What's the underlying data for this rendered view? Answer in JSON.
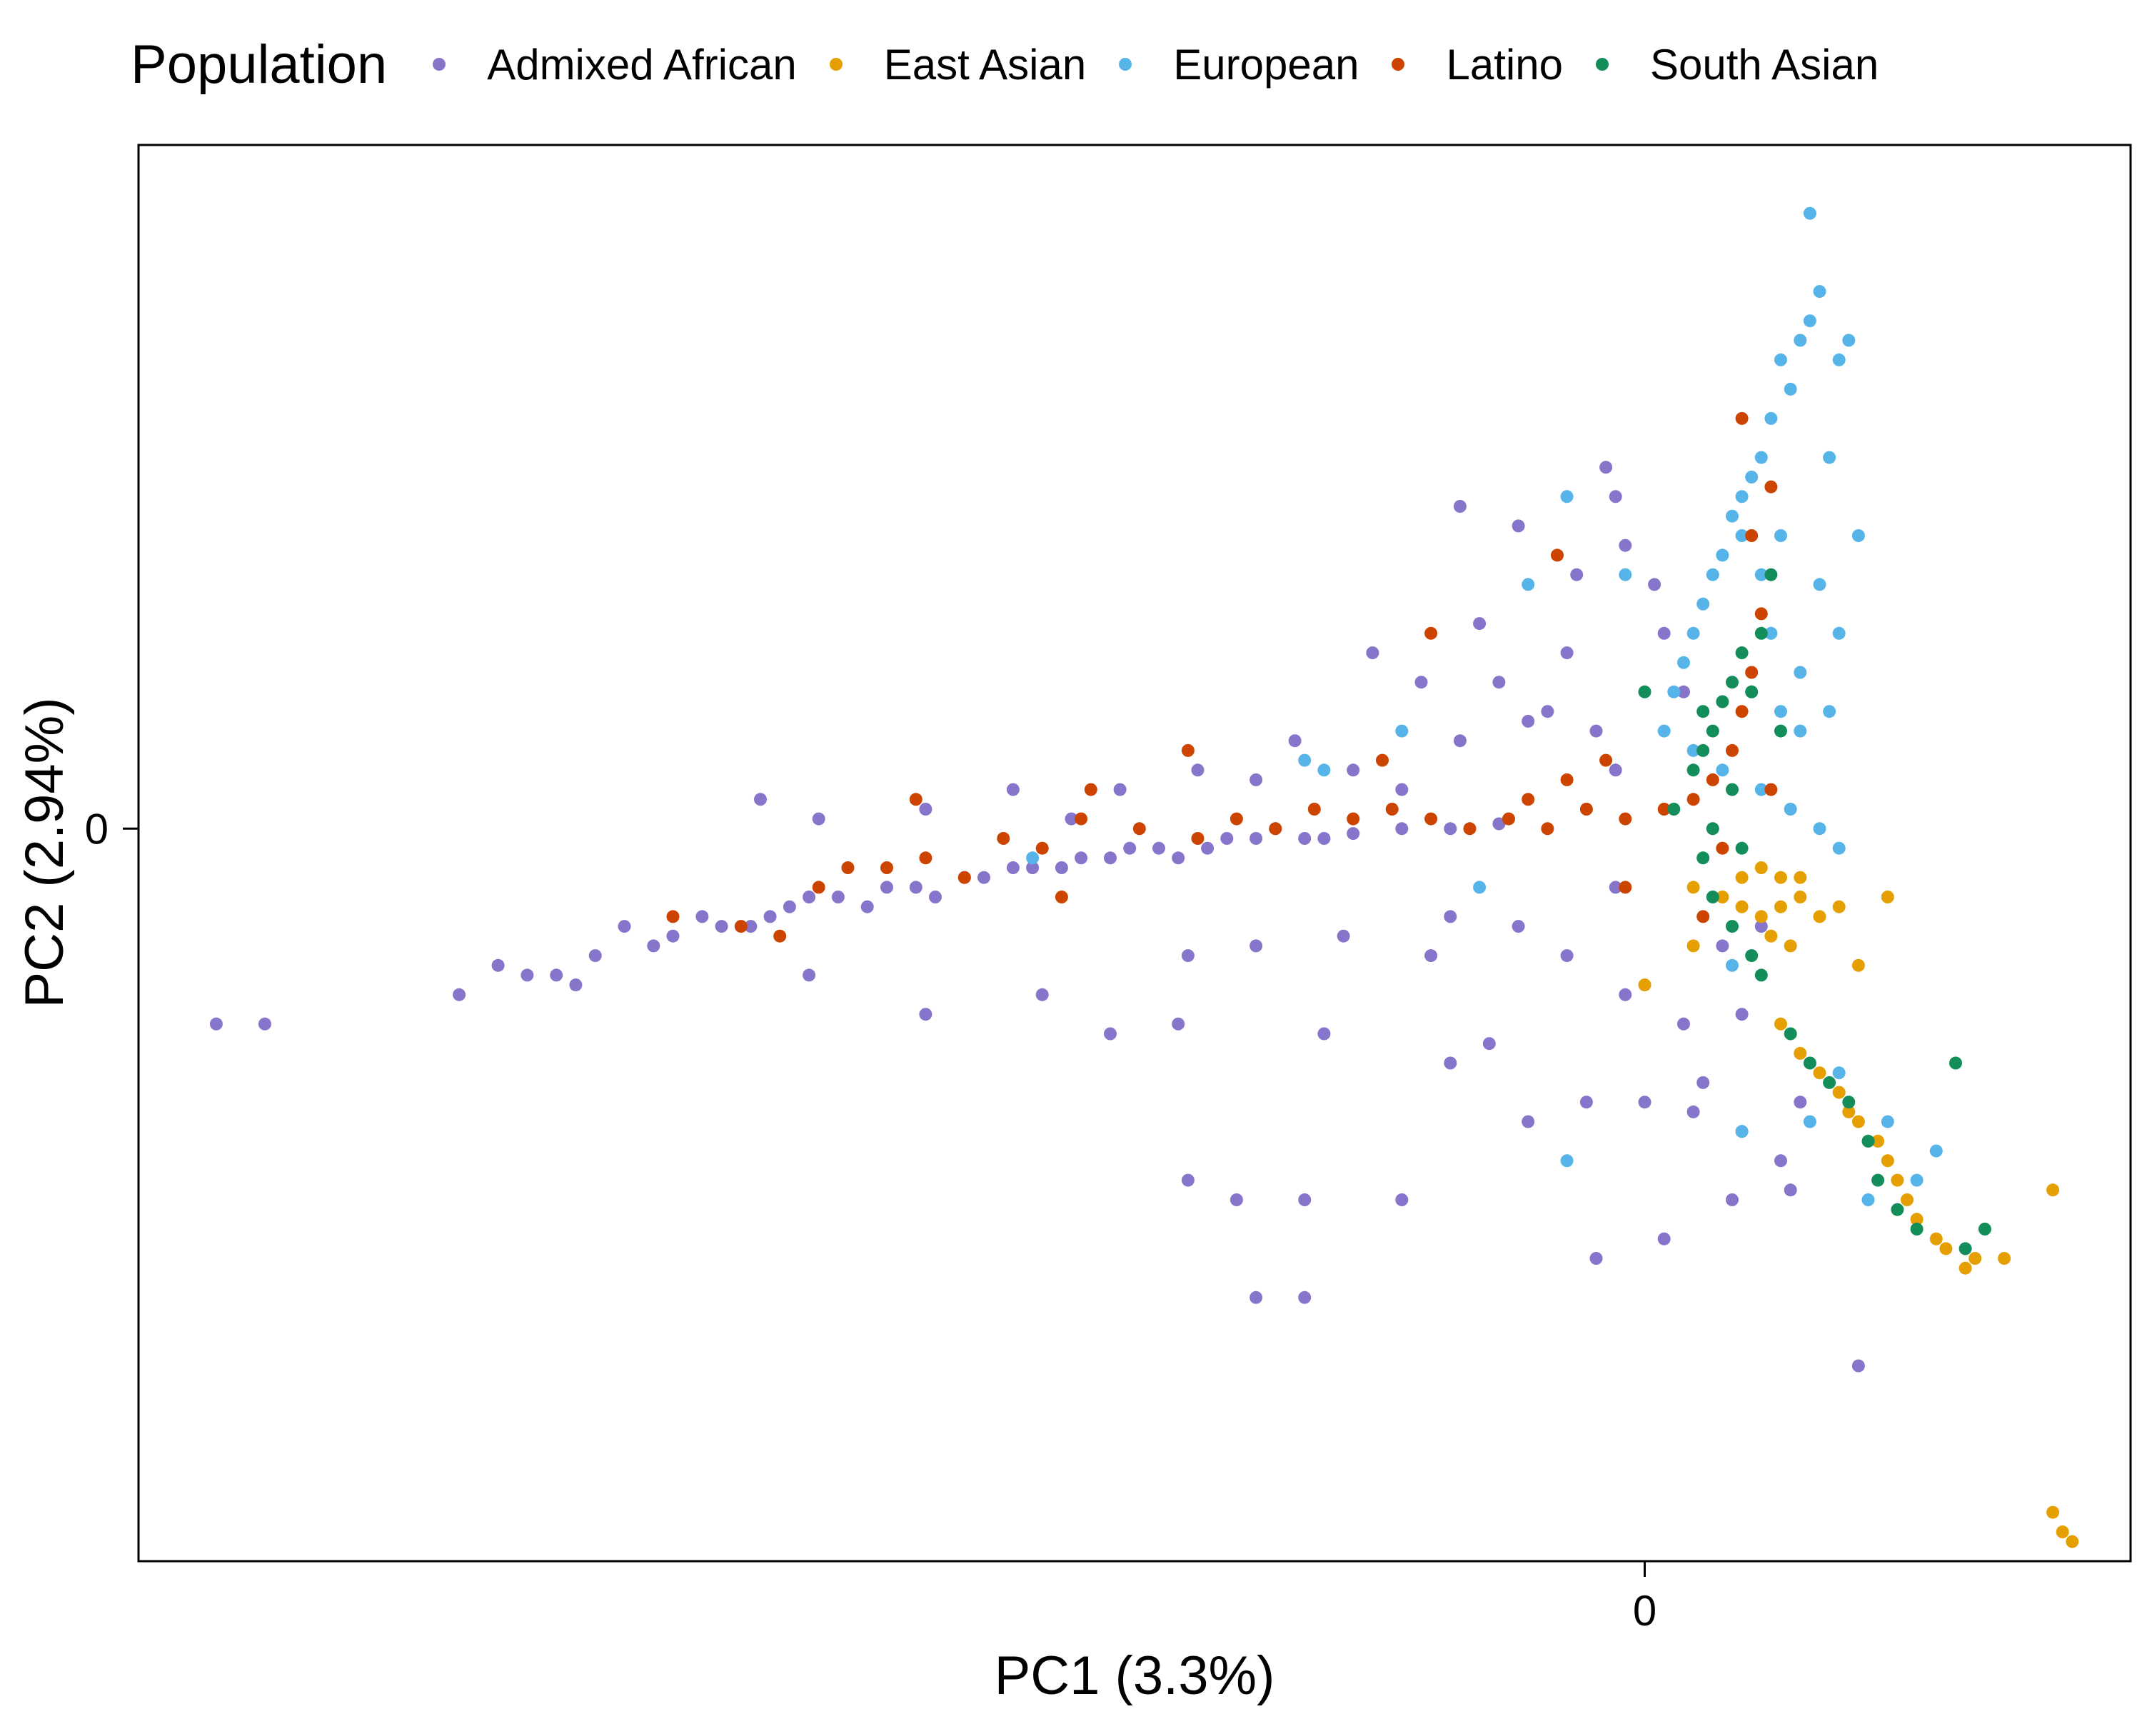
{
  "chart_data": {
    "type": "scatter",
    "title": "",
    "xlabel": "PC1 (3.3%)",
    "ylabel": "PC2 (2.94%)",
    "xlim": [
      -1.55,
      0.5
    ],
    "ylim": [
      -0.75,
      0.7
    ],
    "xticks": [
      0
    ],
    "yticks": [
      0
    ],
    "xtick_labels": [
      "0"
    ],
    "ytick_labels": [
      "0"
    ],
    "grid": false,
    "legend": {
      "title": "Population",
      "position": "top",
      "entries": [
        "Admixed African",
        "East Asian",
        "European",
        "Latino",
        "South Asian"
      ]
    },
    "series": [
      {
        "name": "Admixed African",
        "color": "#8675CB",
        "points": [
          [
            -1.47,
            -0.2
          ],
          [
            -1.42,
            -0.2
          ],
          [
            -1.22,
            -0.17
          ],
          [
            -1.18,
            -0.14
          ],
          [
            -1.15,
            -0.15
          ],
          [
            -1.12,
            -0.15
          ],
          [
            -1.1,
            -0.16
          ],
          [
            -1.05,
            -0.1
          ],
          [
            -1.0,
            -0.11
          ],
          [
            -0.95,
            -0.1
          ],
          [
            -0.9,
            -0.09
          ],
          [
            -0.86,
            -0.07
          ],
          [
            -0.8,
            -0.08
          ],
          [
            -0.75,
            -0.06
          ],
          [
            -0.7,
            -0.05
          ],
          [
            -0.65,
            -0.04
          ],
          [
            -0.6,
            -0.04
          ],
          [
            -0.55,
            -0.03
          ],
          [
            -0.5,
            -0.02
          ],
          [
            -0.45,
            -0.02
          ],
          [
            -0.4,
            -0.01
          ],
          [
            -0.35,
            -0.01
          ],
          [
            -0.3,
            -0.005
          ],
          [
            -0.25,
            0.0
          ],
          [
            -0.2,
            0.0
          ],
          [
            -0.15,
            0.005
          ],
          [
            -1.08,
            -0.13
          ],
          [
            -1.02,
            -0.12
          ],
          [
            -0.97,
            -0.09
          ],
          [
            -0.92,
            -0.1
          ],
          [
            -0.88,
            -0.08
          ],
          [
            -0.83,
            -0.07
          ],
          [
            -0.78,
            -0.06
          ],
          [
            -0.73,
            -0.07
          ],
          [
            -0.68,
            -0.05
          ],
          [
            -0.63,
            -0.04
          ],
          [
            -0.58,
            -0.03
          ],
          [
            -0.53,
            -0.02
          ],
          [
            -0.48,
            -0.03
          ],
          [
            -0.43,
            -0.01
          ],
          [
            -0.38,
            0.0
          ],
          [
            -0.33,
            -0.01
          ],
          [
            -0.91,
            0.03
          ],
          [
            -0.85,
            0.01
          ],
          [
            -0.74,
            0.02
          ],
          [
            -0.65,
            0.04
          ],
          [
            -0.59,
            0.01
          ],
          [
            -0.54,
            0.04
          ],
          [
            -0.46,
            0.06
          ],
          [
            -0.4,
            0.05
          ],
          [
            -0.36,
            0.09
          ],
          [
            -0.3,
            0.06
          ],
          [
            -0.25,
            0.04
          ],
          [
            -0.19,
            0.09
          ],
          [
            -0.12,
            0.11
          ],
          [
            -0.1,
            0.12
          ],
          [
            -0.19,
            0.33
          ],
          [
            -0.13,
            0.31
          ],
          [
            -0.07,
            0.26
          ],
          [
            -0.04,
            0.37
          ],
          [
            -0.03,
            0.34
          ],
          [
            -0.02,
            0.29
          ],
          [
            0.01,
            0.25
          ],
          [
            0.02,
            0.2
          ],
          [
            -0.17,
            0.21
          ],
          [
            -0.23,
            0.15
          ],
          [
            -0.28,
            0.18
          ],
          [
            -0.08,
            0.18
          ],
          [
            -0.15,
            0.15
          ],
          [
            0.04,
            0.14
          ],
          [
            -0.05,
            0.1
          ],
          [
            -0.03,
            0.06
          ],
          [
            -0.2,
            -0.09
          ],
          [
            -0.13,
            -0.1
          ],
          [
            -0.08,
            -0.13
          ],
          [
            -0.03,
            -0.06
          ],
          [
            -0.02,
            -0.17
          ],
          [
            0.04,
            -0.2
          ],
          [
            0.06,
            -0.26
          ],
          [
            0.1,
            -0.19
          ],
          [
            -0.47,
            -0.13
          ],
          [
            -0.4,
            -0.12
          ],
          [
            -0.31,
            -0.11
          ],
          [
            -0.22,
            -0.13
          ],
          [
            -0.33,
            -0.21
          ],
          [
            -0.2,
            -0.24
          ],
          [
            -0.16,
            -0.22
          ],
          [
            -0.86,
            -0.15
          ],
          [
            -0.74,
            -0.19
          ],
          [
            -0.62,
            -0.17
          ],
          [
            -0.55,
            -0.21
          ],
          [
            -0.48,
            -0.2
          ],
          [
            -0.12,
            -0.3
          ],
          [
            -0.06,
            -0.28
          ],
          [
            0.0,
            -0.28
          ],
          [
            0.05,
            -0.29
          ],
          [
            -0.47,
            -0.36
          ],
          [
            -0.42,
            -0.38
          ],
          [
            -0.35,
            -0.38
          ],
          [
            -0.25,
            -0.38
          ],
          [
            -0.05,
            -0.44
          ],
          [
            0.02,
            -0.42
          ],
          [
            0.1,
            -0.31
          ],
          [
            0.14,
            -0.34
          ],
          [
            0.15,
            -0.37
          ],
          [
            -0.4,
            -0.48
          ],
          [
            -0.35,
            -0.48
          ],
          [
            0.22,
            -0.55
          ],
          [
            0.09,
            -0.38
          ],
          [
            0.16,
            -0.28
          ],
          [
            0.08,
            -0.12
          ],
          [
            0.12,
            -0.1
          ]
        ]
      },
      {
        "name": "East Asian",
        "color": "#E69F00",
        "points": [
          [
            0.05,
            -0.06
          ],
          [
            0.08,
            -0.07
          ],
          [
            0.1,
            -0.08
          ],
          [
            0.12,
            -0.09
          ],
          [
            0.14,
            -0.08
          ],
          [
            0.16,
            -0.07
          ],
          [
            0.18,
            -0.09
          ],
          [
            0.1,
            -0.05
          ],
          [
            0.12,
            -0.04
          ],
          [
            0.14,
            -0.05
          ],
          [
            0.16,
            -0.05
          ],
          [
            0.13,
            -0.11
          ],
          [
            0.15,
            -0.12
          ],
          [
            0.14,
            -0.2
          ],
          [
            0.16,
            -0.23
          ],
          [
            0.18,
            -0.25
          ],
          [
            0.2,
            -0.27
          ],
          [
            0.21,
            -0.29
          ],
          [
            0.22,
            -0.3
          ],
          [
            0.24,
            -0.32
          ],
          [
            0.25,
            -0.34
          ],
          [
            0.26,
            -0.36
          ],
          [
            0.27,
            -0.38
          ],
          [
            0.28,
            -0.4
          ],
          [
            0.3,
            -0.42
          ],
          [
            0.31,
            -0.43
          ],
          [
            0.33,
            -0.45
          ],
          [
            0.34,
            -0.44
          ],
          [
            0.37,
            -0.44
          ],
          [
            0.42,
            -0.37
          ],
          [
            0.0,
            -0.16
          ],
          [
            0.05,
            -0.12
          ],
          [
            0.22,
            -0.14
          ],
          [
            0.2,
            -0.08
          ],
          [
            0.25,
            -0.07
          ],
          [
            0.42,
            -0.7
          ],
          [
            0.43,
            -0.72
          ],
          [
            0.44,
            -0.73
          ]
        ]
      },
      {
        "name": "European",
        "color": "#56B4E9",
        "points": [
          [
            0.17,
            0.63
          ],
          [
            0.17,
            0.52
          ],
          [
            0.16,
            0.5
          ],
          [
            0.14,
            0.48
          ],
          [
            0.15,
            0.45
          ],
          [
            0.13,
            0.42
          ],
          [
            0.12,
            0.38
          ],
          [
            0.11,
            0.36
          ],
          [
            0.1,
            0.34
          ],
          [
            0.09,
            0.32
          ],
          [
            0.1,
            0.3
          ],
          [
            0.08,
            0.28
          ],
          [
            0.07,
            0.26
          ],
          [
            0.06,
            0.23
          ],
          [
            0.05,
            0.2
          ],
          [
            0.04,
            0.17
          ],
          [
            0.03,
            0.14
          ],
          [
            0.02,
            0.1
          ],
          [
            0.05,
            0.08
          ],
          [
            0.08,
            0.06
          ],
          [
            0.12,
            0.04
          ],
          [
            0.15,
            0.02
          ],
          [
            0.18,
            0.0
          ],
          [
            0.2,
            -0.02
          ],
          [
            0.16,
            0.1
          ],
          [
            0.19,
            0.12
          ],
          [
            0.2,
            0.2
          ],
          [
            0.18,
            0.25
          ],
          [
            0.22,
            0.3
          ],
          [
            0.19,
            0.38
          ],
          [
            0.14,
            0.3
          ],
          [
            0.12,
            0.26
          ],
          [
            0.13,
            0.2
          ],
          [
            0.11,
            0.14
          ],
          [
            0.14,
            0.12
          ],
          [
            0.16,
            0.16
          ],
          [
            -0.02,
            0.26
          ],
          [
            -0.08,
            0.34
          ],
          [
            -0.12,
            0.25
          ],
          [
            -0.35,
            0.07
          ],
          [
            -0.33,
            0.06
          ],
          [
            -0.25,
            0.1
          ],
          [
            -0.17,
            -0.06
          ],
          [
            -0.63,
            -0.03
          ],
          [
            0.09,
            -0.14
          ],
          [
            0.2,
            -0.25
          ],
          [
            0.25,
            -0.3
          ],
          [
            0.28,
            -0.36
          ],
          [
            0.3,
            -0.33
          ],
          [
            0.23,
            -0.38
          ],
          [
            0.17,
            -0.3
          ],
          [
            0.1,
            -0.31
          ],
          [
            -0.08,
            -0.34
          ],
          [
            0.2,
            0.48
          ],
          [
            0.18,
            0.55
          ],
          [
            0.21,
            0.5
          ]
        ]
      },
      {
        "name": "Latino",
        "color": "#CC4400",
        "points": [
          [
            -0.85,
            -0.06
          ],
          [
            -0.82,
            -0.04
          ],
          [
            -0.78,
            -0.04
          ],
          [
            -0.74,
            -0.03
          ],
          [
            -0.7,
            -0.05
          ],
          [
            -0.66,
            -0.01
          ],
          [
            -0.62,
            -0.02
          ],
          [
            -0.58,
            0.01
          ],
          [
            -0.52,
            0.0
          ],
          [
            -0.46,
            -0.01
          ],
          [
            -0.42,
            0.01
          ],
          [
            -0.38,
            0.0
          ],
          [
            -0.34,
            0.02
          ],
          [
            -0.3,
            0.01
          ],
          [
            -0.26,
            0.02
          ],
          [
            -0.22,
            0.01
          ],
          [
            -0.18,
            0.0
          ],
          [
            -0.14,
            0.01
          ],
          [
            -0.1,
            0.0
          ],
          [
            -0.06,
            0.02
          ],
          [
            -0.02,
            0.01
          ],
          [
            0.02,
            0.02
          ],
          [
            0.05,
            0.03
          ],
          [
            0.07,
            0.05
          ],
          [
            0.09,
            0.08
          ],
          [
            0.1,
            0.12
          ],
          [
            0.11,
            0.16
          ],
          [
            0.12,
            0.22
          ],
          [
            0.11,
            0.3
          ],
          [
            0.13,
            0.35
          ],
          [
            0.1,
            0.42
          ],
          [
            -0.04,
            0.07
          ],
          [
            -0.08,
            0.05
          ],
          [
            -0.12,
            0.03
          ],
          [
            -1.0,
            -0.09
          ],
          [
            -0.93,
            -0.1
          ],
          [
            -0.89,
            -0.11
          ],
          [
            -0.75,
            0.03
          ],
          [
            -0.57,
            0.04
          ],
          [
            -0.47,
            0.08
          ],
          [
            -0.27,
            0.07
          ],
          [
            -0.22,
            0.2
          ],
          [
            -0.09,
            0.28
          ],
          [
            -0.6,
            -0.07
          ],
          [
            -0.02,
            -0.06
          ],
          [
            0.06,
            -0.09
          ],
          [
            0.08,
            -0.02
          ],
          [
            0.13,
            0.04
          ]
        ]
      },
      {
        "name": "South Asian",
        "color": "#138D5A",
        "points": [
          [
            0.05,
            0.06
          ],
          [
            0.06,
            0.08
          ],
          [
            0.07,
            0.1
          ],
          [
            0.08,
            0.13
          ],
          [
            0.09,
            0.15
          ],
          [
            0.1,
            0.18
          ],
          [
            0.11,
            0.14
          ],
          [
            0.09,
            0.04
          ],
          [
            0.07,
            0.0
          ],
          [
            0.06,
            -0.03
          ],
          [
            0.07,
            -0.07
          ],
          [
            0.09,
            -0.1
          ],
          [
            0.11,
            -0.13
          ],
          [
            0.12,
            -0.15
          ],
          [
            0.15,
            -0.21
          ],
          [
            0.17,
            -0.24
          ],
          [
            0.19,
            -0.26
          ],
          [
            0.21,
            -0.28
          ],
          [
            0.23,
            -0.32
          ],
          [
            0.24,
            -0.36
          ],
          [
            0.26,
            -0.39
          ],
          [
            0.28,
            -0.41
          ],
          [
            0.32,
            -0.24
          ],
          [
            0.33,
            -0.43
          ],
          [
            0.35,
            -0.41
          ],
          [
            0.14,
            0.1
          ],
          [
            0.12,
            0.2
          ],
          [
            0.13,
            0.26
          ],
          [
            0.0,
            0.14
          ],
          [
            0.03,
            0.02
          ],
          [
            0.1,
            -0.02
          ],
          [
            0.06,
            0.12
          ]
        ]
      }
    ]
  }
}
